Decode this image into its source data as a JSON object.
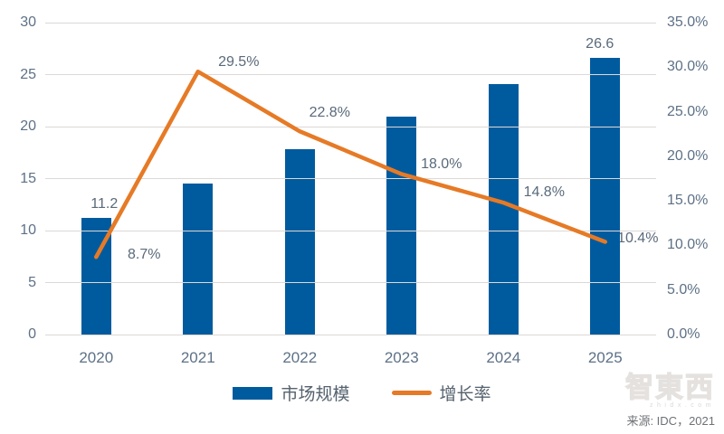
{
  "chart_data": {
    "type": "combo-bar-line",
    "title": "",
    "categories": [
      "2020",
      "2021",
      "2022",
      "2023",
      "2024",
      "2025"
    ],
    "series": [
      {
        "name": "市场规模",
        "type": "bar",
        "axis": "left",
        "color": "#005b9e",
        "values": [
          11.2,
          14.5,
          17.8,
          21.0,
          24.1,
          26.6
        ],
        "point_labels": [
          "11.2",
          "",
          "",
          "",
          "",
          "26.6"
        ]
      },
      {
        "name": "增长率",
        "type": "line",
        "axis": "right",
        "color": "#e67a26",
        "values": [
          8.7,
          29.5,
          22.8,
          18.0,
          14.8,
          10.4
        ],
        "point_labels": [
          "8.7%",
          "29.5%",
          "22.8%",
          "18.0%",
          "14.8%",
          "10.4%"
        ]
      }
    ],
    "left_axis": {
      "range": [
        0,
        30
      ],
      "ticks": [
        "0",
        "5",
        "10",
        "15",
        "20",
        "25",
        "30"
      ]
    },
    "right_axis": {
      "range": [
        0,
        35
      ],
      "ticks": [
        "0.0%",
        "5.0%",
        "10.0%",
        "15.0%",
        "20.0%",
        "25.0%",
        "30.0%",
        "35.0%"
      ]
    },
    "grid": true,
    "legend_position": "bottom"
  },
  "footer": {
    "source": "来源: IDC，2021"
  },
  "watermark": {
    "logo": "智東西",
    "sub": "zhidx.com"
  },
  "colors": {
    "bar": "#005b9e",
    "line": "#e67a26",
    "grid": "#dcd9d7",
    "axis_text": "#5d7186",
    "label_text": "#5a6a7a"
  }
}
